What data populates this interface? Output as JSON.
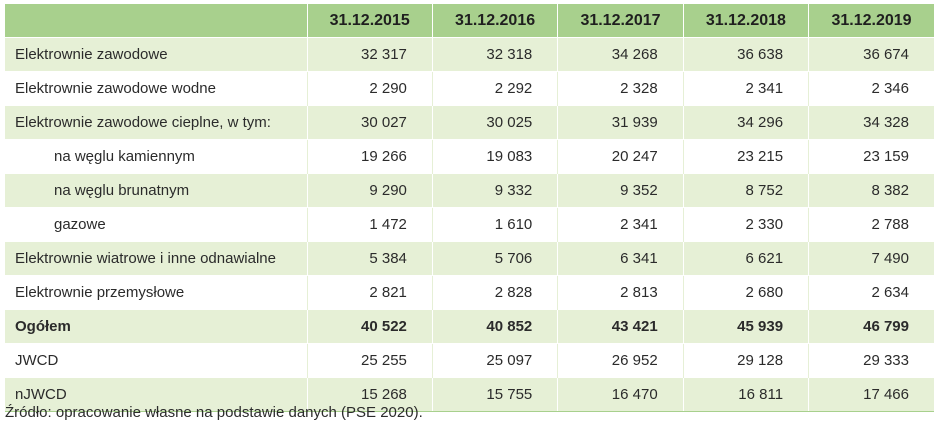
{
  "table": {
    "headers": [
      "",
      "31.12.2015",
      "31.12.2016",
      "31.12.2017",
      "31.12.2018",
      "31.12.2019"
    ],
    "rows": [
      {
        "label": "Elektrownie zawodowe",
        "values": [
          "32 317",
          "32 318",
          "34 268",
          "36 638",
          "36 674"
        ],
        "indent": false,
        "bold": false
      },
      {
        "label": "Elektrownie zawodowe wodne",
        "values": [
          "2 290",
          "2 292",
          "2 328",
          "2 341",
          "2 346"
        ],
        "indent": false,
        "bold": false
      },
      {
        "label": "Elektrownie zawodowe cieplne, w tym:",
        "values": [
          "30 027",
          "30 025",
          "31 939",
          "34 296",
          "34 328"
        ],
        "indent": false,
        "bold": false
      },
      {
        "label": "na węglu kamiennym",
        "values": [
          "19 266",
          "19 083",
          "20 247",
          "23 215",
          "23 159"
        ],
        "indent": true,
        "bold": false
      },
      {
        "label": "na węglu brunatnym",
        "values": [
          "9 290",
          "9 332",
          "9 352",
          "8 752",
          "8 382"
        ],
        "indent": true,
        "bold": false
      },
      {
        "label": "gazowe",
        "values": [
          "1 472",
          "1 610",
          "2 341",
          "2 330",
          "2 788"
        ],
        "indent": true,
        "bold": false
      },
      {
        "label": "Elektrownie wiatrowe i inne odnawialne",
        "values": [
          "5 384",
          "5 706",
          "6 341",
          "6 621",
          "7 490"
        ],
        "indent": false,
        "bold": false
      },
      {
        "label": "Elektrownie przemysłowe",
        "values": [
          "2 821",
          "2 828",
          "2 813",
          "2 680",
          "2 634"
        ],
        "indent": false,
        "bold": false
      },
      {
        "label": "Ogółem",
        "values": [
          "40 522",
          "40 852",
          "43 421",
          "45 939",
          "46 799"
        ],
        "indent": false,
        "bold": true
      },
      {
        "label": "JWCD",
        "values": [
          "25 255",
          "25 097",
          "26 952",
          "29 128",
          "29 333"
        ],
        "indent": false,
        "bold": false
      },
      {
        "label": "nJWCD",
        "values": [
          "15 268",
          "15 755",
          "16 470",
          "16 811",
          "17 466"
        ],
        "indent": false,
        "bold": false
      }
    ]
  },
  "source": "Źródło: opracowanie własne na podstawie danych (PSE 2020).",
  "colors": {
    "header": "#a8d08d",
    "stripe": "#e6f0d6"
  }
}
